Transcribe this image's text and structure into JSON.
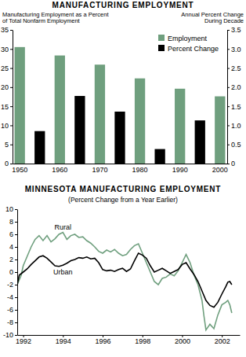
{
  "chart_data": [
    {
      "type": "bar",
      "title": "MANUFACTURING EMPLOYMENT",
      "ylabel": [
        "Manufacturing Employment as a Percent",
        "of Total Nonfarm Employment"
      ],
      "y2label": [
        "Annual Percent Change",
        "During Decade"
      ],
      "categories": [
        "1950",
        null,
        "1960",
        null,
        "1970",
        null,
        "1980",
        null,
        "1990",
        null,
        "2000"
      ],
      "series": [
        {
          "name": "Employment",
          "color": "#6f9f7e",
          "values": [
            30.5,
            null,
            28.3,
            null,
            25.9,
            null,
            22.3,
            null,
            19.6,
            null,
            17.6
          ]
        },
        {
          "name": "Percent Change",
          "color": "#000000",
          "axis": "y2",
          "values": [
            null,
            0.85,
            null,
            1.77,
            null,
            1.36,
            null,
            0.38,
            null,
            1.13,
            null
          ]
        }
      ],
      "ylim": [
        0,
        35
      ],
      "yticks": [
        0,
        5,
        10,
        15,
        20,
        25,
        30,
        35
      ],
      "y2lim": [
        0,
        3.5
      ],
      "y2ticks": [
        0,
        0.5,
        {
          "value": 1,
          "label": "1.0"
        },
        1.5,
        {
          "value": 2,
          "label": "2.0"
        },
        2.5,
        {
          "value": 3,
          "label": "3.0"
        },
        3.5
      ],
      "legend": "upper right"
    },
    {
      "type": "line",
      "title": "MINNESOTA MANUFACTURING EMPLOYMENT",
      "subtitle": "(Percent Change from a Year Earlier)",
      "series": [
        {
          "name": "Rural",
          "color": "#6f9f7e",
          "x": [
            1991.7,
            1991.9,
            1992.0,
            1992.2,
            1992.4,
            1992.6,
            1992.8,
            1993.0,
            1993.2,
            1993.4,
            1993.6,
            1993.8,
            1994.0,
            1994.2,
            1994.4,
            1994.6,
            1994.8,
            1995.0,
            1995.2,
            1995.4,
            1995.6,
            1995.8,
            1996.0,
            1996.2,
            1996.4,
            1996.6,
            1996.8,
            1997.0,
            1997.2,
            1997.4,
            1997.6,
            1997.8,
            1998.0,
            1998.2,
            1998.4,
            1998.6,
            1998.8,
            1999.0,
            1999.2,
            1999.4,
            1999.6,
            1999.8,
            2000.0,
            2000.2,
            2000.4,
            2000.6,
            2000.8,
            2001.0,
            2001.1,
            2001.2,
            2001.4,
            2001.6,
            2001.8,
            2002.0,
            2002.2,
            2002.3,
            2002.4,
            2002.5
          ],
          "values": [
            -2,
            -0.5,
            1,
            2.5,
            4,
            5.2,
            5.8,
            5,
            5.8,
            4.8,
            5.3,
            6,
            6.3,
            5.2,
            5.8,
            6,
            5.5,
            5.6,
            5,
            4.6,
            4,
            3.3,
            3,
            3.5,
            3.2,
            3.6,
            3,
            2.6,
            2.8,
            3.6,
            4.2,
            4.5,
            3,
            1.5,
            0,
            -1.5,
            -2,
            -1,
            -0.8,
            -0.3,
            -0.6,
            0.2,
            1.5,
            2.8,
            1.5,
            -0.5,
            -2,
            -4.5,
            -7,
            -9.2,
            -8.3,
            -9,
            -6.8,
            -5.2,
            -4.8,
            -4.5,
            -5.2,
            -6.5
          ]
        },
        {
          "name": "Urban",
          "color": "#000000",
          "x": [
            1991.7,
            1991.8,
            1992.0,
            1992.2,
            1992.4,
            1992.6,
            1992.8,
            1993.0,
            1993.2,
            1993.4,
            1993.6,
            1993.8,
            1994.0,
            1994.2,
            1994.4,
            1994.6,
            1994.8,
            1995.0,
            1995.2,
            1995.4,
            1995.6,
            1995.8,
            1996.0,
            1996.2,
            1996.4,
            1996.6,
            1996.8,
            1997.0,
            1997.2,
            1997.4,
            1997.6,
            1997.8,
            1998.0,
            1998.2,
            1998.4,
            1998.6,
            1998.8,
            1999.0,
            1999.2,
            1999.4,
            1999.6,
            1999.8,
            2000.0,
            2000.2,
            2000.4,
            2000.6,
            2000.8,
            2001.0,
            2001.2,
            2001.4,
            2001.6,
            2001.8,
            2002.0,
            2002.2,
            2002.3,
            2002.4,
            2002.5
          ],
          "values": [
            -2,
            -0.5,
            0,
            0.5,
            1.2,
            1.8,
            2.4,
            2.6,
            2.2,
            1.6,
            1,
            0.9,
            1.1,
            1.4,
            1.8,
            2,
            2.3,
            2.2,
            2.4,
            2.1,
            2.2,
            1.5,
            0.4,
            0.2,
            0.3,
            0.1,
            0.4,
            0.6,
            0.1,
            0.5,
            1.8,
            3,
            2.7,
            2.2,
            1,
            0,
            0.3,
            0.6,
            0.2,
            -0.2,
            0.1,
            0.4,
            1.2,
            1.5,
            0.5,
            -0.4,
            -1.5,
            -3,
            -4.5,
            -5.3,
            -5.6,
            -4.8,
            -3.5,
            -2.3,
            -1.6,
            -1.5,
            -2
          ]
        }
      ],
      "xlim": [
        1991.7,
        2002.9
      ],
      "xticks": [
        1992,
        1994,
        1996,
        1998,
        2000,
        2002
      ],
      "ylim": [
        -10,
        10
      ],
      "yticks": [
        -10,
        -8,
        -6,
        -4,
        -2,
        0,
        2,
        4,
        6,
        8,
        10
      ]
    }
  ]
}
